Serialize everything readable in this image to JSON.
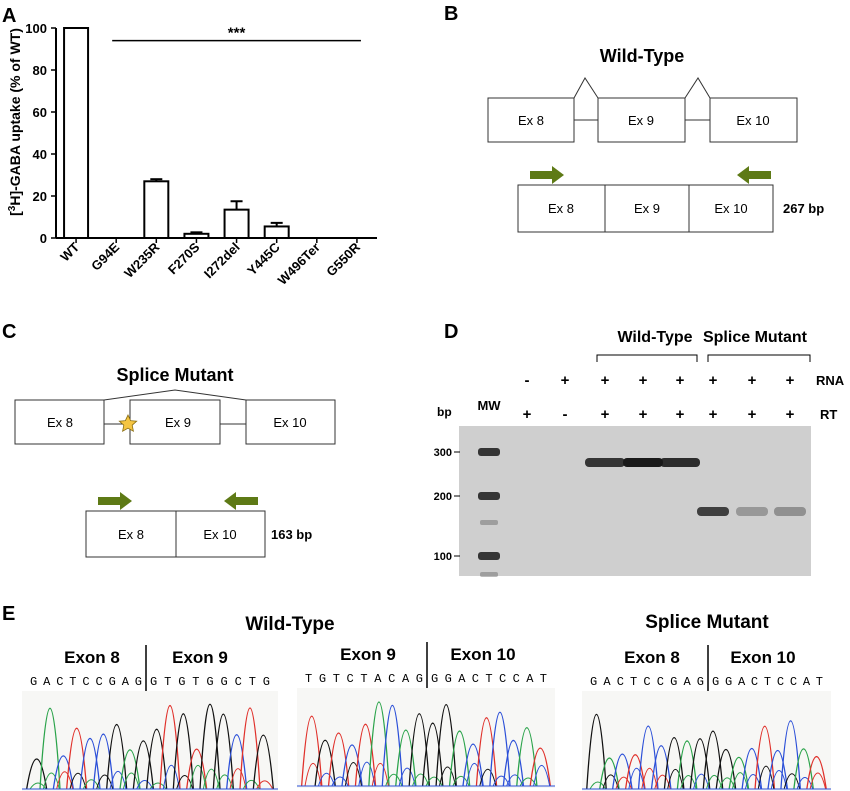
{
  "panels": {
    "a": "A",
    "b": "B",
    "c": "C",
    "d": "D",
    "e": "E"
  },
  "chart_data": {
    "type": "bar",
    "ylabel": "[3H]-GABA uptake (% of WT)",
    "ylabel_prefix": "[",
    "ylabel_sup": "3",
    "ylabel_rest": "H]-GABA uptake (% of WT)",
    "ylim": [
      0,
      100
    ],
    "yticks": [
      0,
      20,
      40,
      60,
      80,
      100
    ],
    "categories": [
      "WT",
      "G94E",
      "W235R",
      "F270S",
      "I272del",
      "Y445C",
      "W496Ter",
      "G550R"
    ],
    "values": [
      100,
      0,
      27,
      2,
      13.5,
      5.5,
      0,
      0
    ],
    "errors": [
      0,
      0,
      1,
      0.7,
      4,
      1.7,
      0,
      0
    ],
    "significance": {
      "label": "***",
      "from": "G94E",
      "to": "G550R",
      "y": 94
    }
  },
  "wild_type_diagram": {
    "title": "Wild-Type",
    "exons": [
      "Ex 8",
      "Ex 9",
      "Ex 10"
    ],
    "product_exons": [
      "Ex 8",
      "Ex 9",
      "Ex 10"
    ],
    "product_size": "267 bp"
  },
  "splice_mutant_diagram": {
    "title": "Splice Mutant",
    "exons": [
      "Ex 8",
      "Ex 9",
      "Ex 10"
    ],
    "product_exons": [
      "Ex 8",
      "Ex 10"
    ],
    "product_size": "163 bp"
  },
  "gel": {
    "group_wt": "Wild-Type",
    "group_sm": "Splice Mutant",
    "rna_label": "RNA",
    "rt_label": "RT",
    "bp_label": "bp",
    "mw_label": "MW",
    "rna_row": [
      "-",
      "+",
      "+",
      "+",
      "+",
      "+",
      "+",
      "+"
    ],
    "rt_row": [
      "+",
      "-",
      "+",
      "+",
      "+",
      "+",
      "+",
      "+"
    ],
    "ladder": [
      "300",
      "200",
      "100"
    ],
    "wt_band_intensity": [
      0.85,
      1.0,
      0.9
    ],
    "sm_band_intensity": [
      0.8,
      0.3,
      0.35
    ]
  },
  "sequences": {
    "wt_title": "Wild-Type",
    "sm_title": "Splice Mutant",
    "wt1": {
      "left_exon": "Exon 8",
      "right_exon": "Exon 9",
      "left_seq": "GACTCCGAG",
      "right_seq": "GTGTGGCTG"
    },
    "wt2": {
      "left_exon": "Exon 9",
      "right_exon": "Exon 10",
      "left_seq": "TGTCTACAG",
      "right_seq": "GGACTCCAT"
    },
    "sm": {
      "left_exon": "Exon 8",
      "right_exon": "Exon 10",
      "left_seq": "GACTCCGAG",
      "right_seq": "GGACTCCAT"
    }
  },
  "colors": {
    "arrow": "#5e7a16",
    "star": "#f5c542",
    "gel_bg": "#cfcfcf",
    "band": "#1a1a1a",
    "A": "#2aa34a",
    "C": "#2b4fd8",
    "G": "#111111",
    "T": "#e0302a"
  }
}
